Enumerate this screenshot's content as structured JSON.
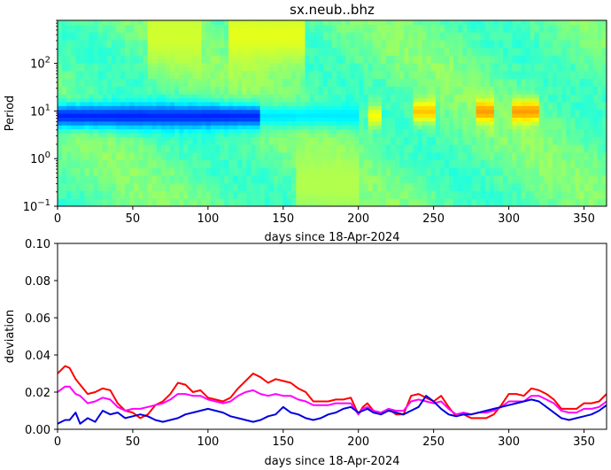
{
  "title": "sx.neub..bhz",
  "chart_data": [
    {
      "type": "heatmap",
      "xlabel": "days since 18-Apr-2024",
      "ylabel": "Period",
      "xlim": [
        0,
        365
      ],
      "ylim": [
        0.1,
        800
      ],
      "yscale": "log",
      "xticks": [
        "0",
        "50",
        "100",
        "150",
        "200",
        "250",
        "300",
        "350"
      ],
      "yticks": [
        {
          "value": 0.1,
          "base": "10",
          "exp": "−1"
        },
        {
          "value": 1,
          "base": "10",
          "exp": "0"
        },
        {
          "value": 10,
          "base": "10",
          "exp": "1"
        },
        {
          "value": 100,
          "base": "10",
          "exp": "2"
        }
      ],
      "colormap": "jet",
      "value_range": [
        0,
        1
      ],
      "description_scale_note": "",
      "features": [
        {
          "x0": 0,
          "x1": 135,
          "period_center": 8,
          "level": 0.16
        },
        {
          "x0": 135,
          "x1": 200,
          "period_center": 8,
          "level": 0.35
        },
        {
          "x0": 205,
          "x1": 215,
          "period_center": 8,
          "level": 0.62
        },
        {
          "x0": 236,
          "x1": 250,
          "period_center": 10,
          "level": 0.68
        },
        {
          "x0": 278,
          "x1": 290,
          "period_center": 10,
          "level": 0.72
        },
        {
          "x0": 302,
          "x1": 320,
          "period_center": 10,
          "level": 0.72
        },
        {
          "x0": 60,
          "x1": 95,
          "period_center": 400,
          "level": 0.58
        },
        {
          "x0": 115,
          "x1": 165,
          "period_center": 400,
          "level": 0.6
        },
        {
          "x0": 160,
          "x1": 200,
          "period_center": 0.3,
          "level": 0.55
        }
      ]
    },
    {
      "type": "line",
      "xlabel": "days since 18-Apr-2024",
      "ylabel": "deviation",
      "xlim": [
        0,
        365
      ],
      "ylim": [
        0,
        0.1
      ],
      "xticks": [
        "0",
        "50",
        "100",
        "150",
        "200",
        "250",
        "300",
        "350"
      ],
      "yticks": [
        "0.00",
        "0.02",
        "0.04",
        "0.06",
        "0.08",
        "0.10"
      ],
      "series": [
        {
          "color": "#ff0000",
          "x": [
            0,
            5,
            8,
            12,
            15,
            20,
            25,
            30,
            35,
            40,
            45,
            50,
            55,
            60,
            65,
            70,
            75,
            80,
            85,
            90,
            95,
            100,
            105,
            110,
            115,
            120,
            125,
            130,
            135,
            140,
            145,
            150,
            155,
            160,
            165,
            170,
            175,
            180,
            185,
            190,
            195,
            200,
            203,
            206,
            210,
            215,
            220,
            225,
            230,
            235,
            240,
            245,
            250,
            255,
            260,
            265,
            270,
            275,
            280,
            285,
            290,
            295,
            300,
            305,
            310,
            315,
            320,
            325,
            330,
            335,
            340,
            345,
            350,
            355,
            360,
            365
          ],
          "y": [
            0.03,
            0.034,
            0.033,
            0.027,
            0.024,
            0.019,
            0.02,
            0.022,
            0.021,
            0.014,
            0.01,
            0.009,
            0.006,
            0.008,
            0.013,
            0.015,
            0.019,
            0.025,
            0.024,
            0.02,
            0.021,
            0.017,
            0.016,
            0.015,
            0.017,
            0.022,
            0.026,
            0.03,
            0.028,
            0.025,
            0.027,
            0.026,
            0.025,
            0.022,
            0.02,
            0.015,
            0.015,
            0.015,
            0.016,
            0.016,
            0.017,
            0.008,
            0.012,
            0.014,
            0.01,
            0.008,
            0.011,
            0.008,
            0.008,
            0.018,
            0.019,
            0.017,
            0.015,
            0.018,
            0.012,
            0.007,
            0.008,
            0.006,
            0.006,
            0.006,
            0.008,
            0.013,
            0.019,
            0.019,
            0.018,
            0.022,
            0.021,
            0.019,
            0.016,
            0.011,
            0.011,
            0.011,
            0.014,
            0.014,
            0.015,
            0.019
          ]
        },
        {
          "color": "#ff00ff",
          "x": [
            0,
            5,
            8,
            12,
            15,
            20,
            25,
            30,
            35,
            40,
            45,
            50,
            55,
            60,
            65,
            70,
            75,
            80,
            85,
            90,
            95,
            100,
            105,
            110,
            115,
            120,
            125,
            130,
            135,
            140,
            145,
            150,
            155,
            160,
            165,
            170,
            175,
            180,
            185,
            190,
            195,
            200,
            203,
            206,
            210,
            215,
            220,
            225,
            230,
            235,
            240,
            245,
            250,
            255,
            260,
            265,
            270,
            275,
            280,
            285,
            290,
            295,
            300,
            305,
            310,
            315,
            320,
            325,
            330,
            335,
            340,
            345,
            350,
            355,
            360,
            365
          ],
          "y": [
            0.02,
            0.023,
            0.023,
            0.019,
            0.018,
            0.014,
            0.015,
            0.017,
            0.016,
            0.012,
            0.01,
            0.011,
            0.011,
            0.012,
            0.013,
            0.014,
            0.016,
            0.019,
            0.019,
            0.018,
            0.018,
            0.016,
            0.015,
            0.014,
            0.015,
            0.018,
            0.02,
            0.021,
            0.019,
            0.018,
            0.019,
            0.018,
            0.018,
            0.016,
            0.015,
            0.013,
            0.013,
            0.013,
            0.014,
            0.014,
            0.014,
            0.008,
            0.011,
            0.012,
            0.01,
            0.009,
            0.011,
            0.01,
            0.01,
            0.015,
            0.016,
            0.015,
            0.014,
            0.015,
            0.011,
            0.008,
            0.009,
            0.008,
            0.009,
            0.009,
            0.01,
            0.012,
            0.015,
            0.015,
            0.015,
            0.018,
            0.018,
            0.016,
            0.014,
            0.01,
            0.009,
            0.009,
            0.011,
            0.011,
            0.012,
            0.015
          ]
        },
        {
          "color": "#0000dd",
          "x": [
            0,
            5,
            8,
            12,
            15,
            20,
            25,
            30,
            35,
            40,
            45,
            50,
            55,
            60,
            65,
            70,
            75,
            80,
            85,
            90,
            95,
            100,
            105,
            110,
            115,
            120,
            125,
            130,
            135,
            140,
            145,
            150,
            155,
            160,
            165,
            170,
            175,
            180,
            185,
            190,
            195,
            200,
            203,
            206,
            210,
            215,
            220,
            225,
            230,
            235,
            240,
            245,
            250,
            255,
            260,
            265,
            270,
            275,
            280,
            285,
            290,
            295,
            300,
            305,
            310,
            315,
            320,
            325,
            330,
            335,
            340,
            345,
            350,
            355,
            360,
            365
          ],
          "y": [
            0.003,
            0.005,
            0.005,
            0.009,
            0.003,
            0.006,
            0.004,
            0.01,
            0.008,
            0.009,
            0.006,
            0.007,
            0.008,
            0.007,
            0.005,
            0.004,
            0.005,
            0.006,
            0.008,
            0.009,
            0.01,
            0.011,
            0.01,
            0.009,
            0.007,
            0.006,
            0.005,
            0.004,
            0.005,
            0.007,
            0.008,
            0.012,
            0.009,
            0.008,
            0.006,
            0.005,
            0.006,
            0.008,
            0.009,
            0.011,
            0.012,
            0.009,
            0.01,
            0.011,
            0.009,
            0.008,
            0.01,
            0.009,
            0.008,
            0.01,
            0.012,
            0.018,
            0.015,
            0.011,
            0.008,
            0.007,
            0.008,
            0.008,
            0.009,
            0.01,
            0.011,
            0.012,
            0.013,
            0.014,
            0.015,
            0.016,
            0.015,
            0.012,
            0.009,
            0.006,
            0.005,
            0.006,
            0.007,
            0.008,
            0.01,
            0.013
          ]
        }
      ]
    }
  ]
}
